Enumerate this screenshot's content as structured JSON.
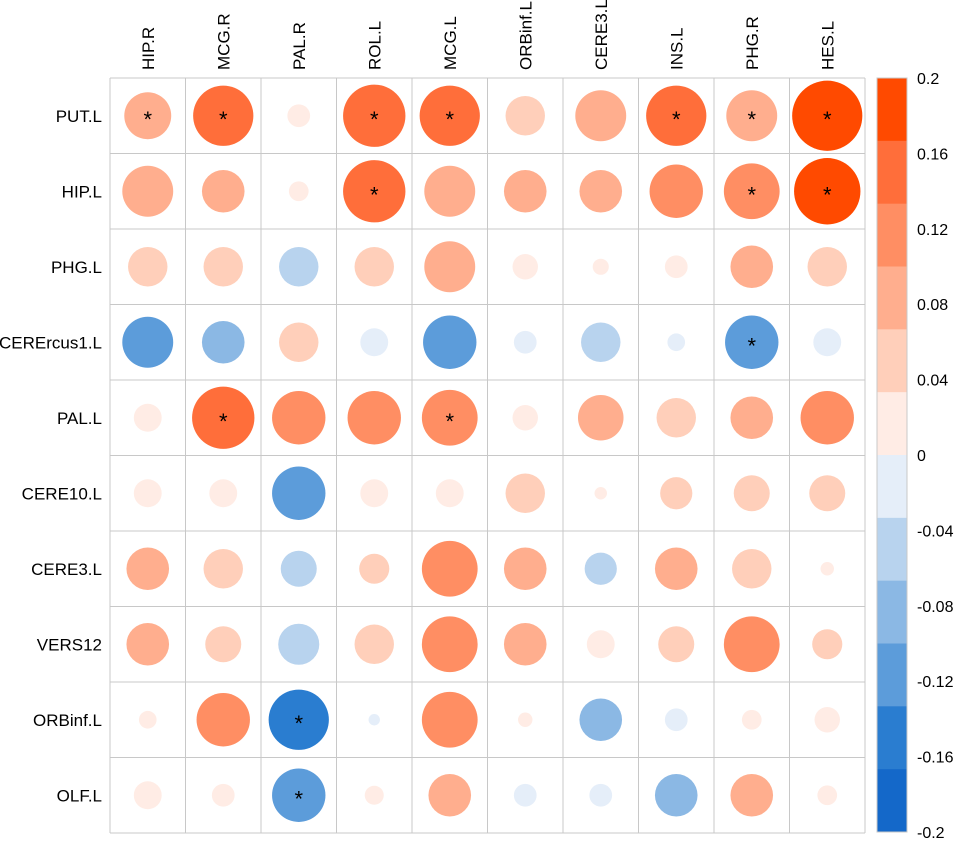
{
  "chart_data": {
    "type": "heatmap",
    "subtype": "correlation-circle-matrix",
    "columns": [
      "HIP.R",
      "MCG.R",
      "PAL.R",
      "ROL.L",
      "MCG.L",
      "ORBinf.L",
      "CERE3.L",
      "INS.L",
      "PHG.R",
      "HES.L"
    ],
    "rows": [
      "PUT.L",
      "HIP.L",
      "PHG.L",
      "CERErcus1.L",
      "PAL.L",
      "CERE10.L",
      "CERE3.L",
      "VERS12",
      "ORBinf.L",
      "OLF.L"
    ],
    "values": [
      [
        0.085,
        0.14,
        0.02,
        0.15,
        0.14,
        0.06,
        0.1,
        0.14,
        0.1,
        0.19
      ],
      [
        0.1,
        0.07,
        0.015,
        0.15,
        0.1,
        0.07,
        0.07,
        0.11,
        0.12,
        0.17
      ],
      [
        0.06,
        0.06,
        -0.06,
        0.06,
        0.1,
        0.025,
        0.01,
        0.02,
        0.07,
        0.06
      ],
      [
        -0.1,
        -0.07,
        0.06,
        -0.03,
        -0.11,
        -0.02,
        -0.06,
        -0.012,
        -0.11,
        -0.03
      ],
      [
        0.03,
        0.15,
        0.11,
        0.11,
        0.12,
        0.025,
        0.08,
        0.06,
        0.07,
        0.11
      ],
      [
        0.03,
        0.03,
        -0.11,
        0.03,
        0.03,
        0.06,
        0.006,
        0.04,
        0.05,
        0.05
      ],
      [
        0.07,
        0.06,
        -0.05,
        0.035,
        0.12,
        0.07,
        -0.04,
        0.07,
        0.06,
        0.007
      ],
      [
        0.07,
        0.05,
        -0.065,
        0.06,
        0.12,
        0.07,
        0.03,
        0.05,
        0.12,
        0.035
      ],
      [
        0.012,
        0.11,
        -0.14,
        -0.005,
        0.12,
        0.008,
        -0.07,
        -0.02,
        0.015,
        0.025
      ],
      [
        0.03,
        0.02,
        -0.11,
        0.014,
        0.07,
        -0.02,
        -0.02,
        -0.07,
        0.07,
        0.015
      ]
    ],
    "significance_mark": "*",
    "significant": [
      [
        0,
        0
      ],
      [
        0,
        1
      ],
      [
        0,
        3
      ],
      [
        0,
        4
      ],
      [
        0,
        7
      ],
      [
        0,
        8
      ],
      [
        0,
        9
      ],
      [
        1,
        3
      ],
      [
        1,
        8
      ],
      [
        1,
        9
      ],
      [
        3,
        8
      ],
      [
        4,
        1
      ],
      [
        4,
        4
      ],
      [
        8,
        2
      ],
      [
        9,
        2
      ]
    ],
    "color_range": [
      -0.2,
      0.2
    ],
    "colorbar": {
      "ticks": [
        "0.2",
        "0.16",
        "0.12",
        "0.08",
        "0.04",
        "0",
        "-0.04",
        "-0.08",
        "-0.12",
        "-0.16",
        "-0.2"
      ],
      "colors": [
        "#FF4A00",
        "#FF6E3A",
        "#FF8E63",
        "#FFAE8E",
        "#FFCFBA",
        "#FFECE5",
        "#E5EEF9",
        "#B8D3EE",
        "#8BB8E4",
        "#5C9CDA",
        "#2A7DD0",
        "#1468C9"
      ]
    }
  }
}
